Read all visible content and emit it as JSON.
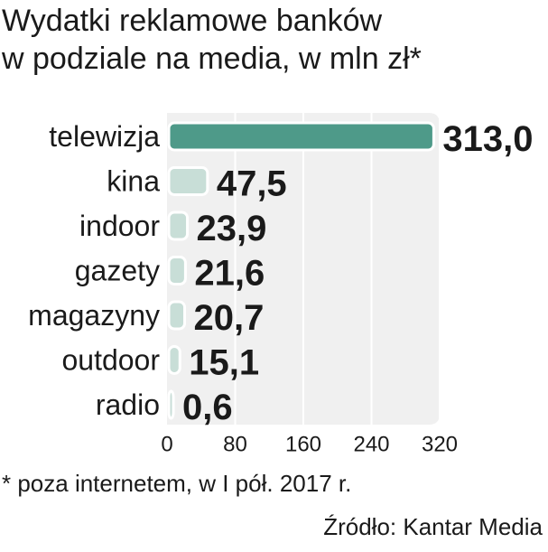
{
  "chart_data": {
    "type": "bar",
    "orientation": "horizontal",
    "title_lines": [
      "Wydatki reklamowe banków",
      "w podziale na media, w mln zł*"
    ],
    "categories": [
      "telewizja",
      "kina",
      "indoor",
      "gazety",
      "magazyny",
      "outdoor",
      "radio"
    ],
    "values": [
      313.0,
      47.5,
      23.9,
      21.6,
      20.7,
      15.1,
      0.6
    ],
    "value_labels": [
      "313,0",
      "47,5",
      "23,9",
      "21,6",
      "20,7",
      "15,1",
      "0,6"
    ],
    "xlim": [
      0,
      320
    ],
    "xticks": [
      0,
      80,
      160,
      240,
      320
    ],
    "grid": true,
    "colors": {
      "highlight": "#4e9a89",
      "bar": "#c8ded7",
      "plot_bg": "#f0f0f0",
      "grid": "#ffffff",
      "text": "#1a1a1a"
    }
  },
  "footnote": "* poza internetem, w I pół. 2017 r.",
  "source": "Źródło: Kantar Media"
}
